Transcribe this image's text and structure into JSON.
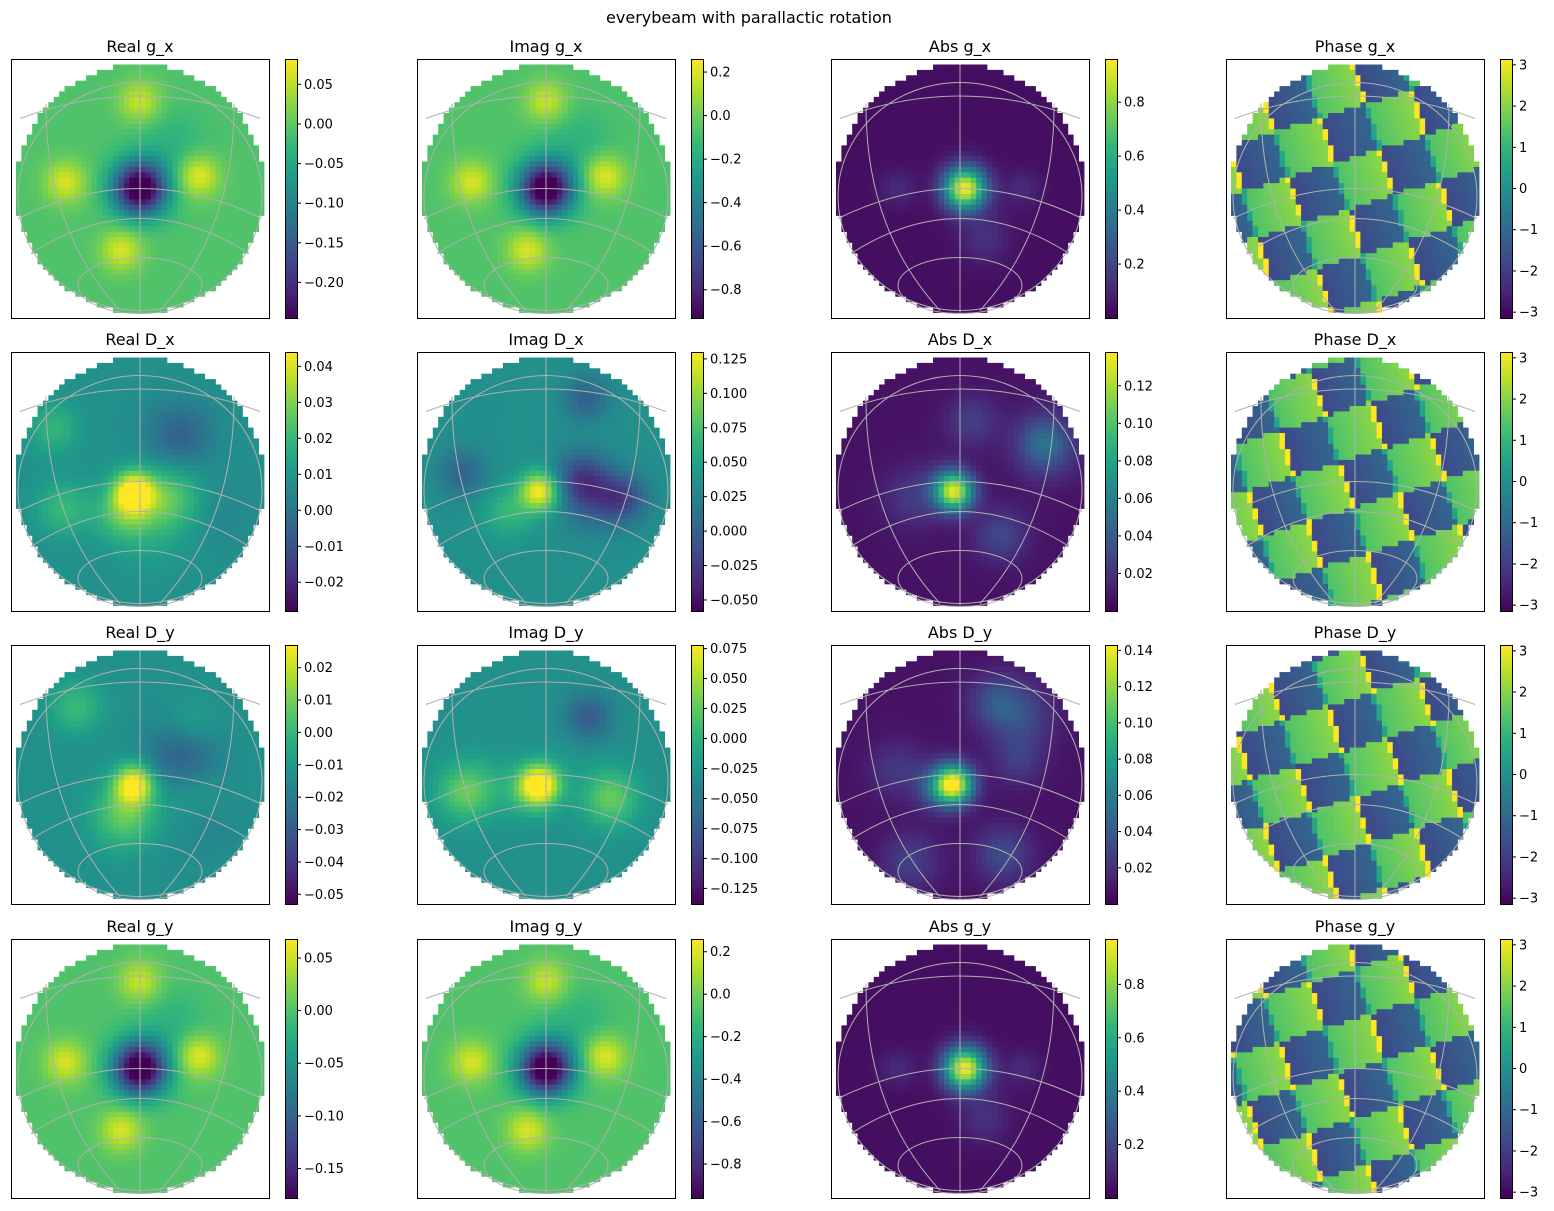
{
  "figure": {
    "title": "everybeam with parallactic rotation",
    "colormap": "viridis",
    "grid_color": "#b0b0b0",
    "background": "#ffffff"
  },
  "chart_data": [
    {
      "type": "heatmap",
      "title": "Real g_x",
      "map": "real_main",
      "range": [
        -0.245,
        0.082
      ],
      "colorbar_ticks": [
        0.05,
        0.0,
        -0.05,
        -0.1,
        -0.15,
        -0.2
      ],
      "colorbar_labels": [
        "0.05",
        "0.00",
        "−0.05",
        "−0.10",
        "−0.15",
        "−0.20"
      ]
    },
    {
      "type": "heatmap",
      "title": "Imag g_x",
      "map": "imag_main",
      "range": [
        -0.93,
        0.26
      ],
      "colorbar_ticks": [
        0.2,
        0.0,
        -0.2,
        -0.4,
        -0.6,
        -0.8
      ],
      "colorbar_labels": [
        "0.2",
        "0.0",
        "−0.2",
        "−0.4",
        "−0.6",
        "−0.8"
      ]
    },
    {
      "type": "heatmap",
      "title": "Abs g_x",
      "map": "abs_main",
      "range": [
        0.0,
        0.96
      ],
      "colorbar_ticks": [
        0.8,
        0.6,
        0.4,
        0.2
      ],
      "colorbar_labels": [
        "0.8",
        "0.6",
        "0.4",
        "0.2"
      ]
    },
    {
      "type": "heatmap",
      "title": "Phase g_x",
      "map": "phase",
      "seed": 1,
      "range": [
        -3.14159,
        3.14159
      ],
      "colorbar_ticks": [
        3,
        2,
        1,
        0,
        -1,
        -2,
        -3
      ],
      "colorbar_labels": [
        "3",
        "2",
        "1",
        "0",
        "−1",
        "−2",
        "−3"
      ]
    },
    {
      "type": "heatmap",
      "title": "Real D_x",
      "map": "real_d",
      "seed": 2,
      "range": [
        -0.028,
        0.044
      ],
      "colorbar_ticks": [
        0.04,
        0.03,
        0.02,
        0.01,
        0.0,
        -0.01,
        -0.02
      ],
      "colorbar_labels": [
        "0.04",
        "0.03",
        "0.02",
        "0.01",
        "0.00",
        "−0.01",
        "−0.02"
      ]
    },
    {
      "type": "heatmap",
      "title": "Imag D_x",
      "map": "imag_d",
      "seed": 3,
      "range": [
        -0.058,
        0.13
      ],
      "colorbar_ticks": [
        0.125,
        0.1,
        0.075,
        0.05,
        0.025,
        0.0,
        -0.025,
        -0.05
      ],
      "colorbar_labels": [
        "0.125",
        "0.100",
        "0.075",
        "0.050",
        "0.025",
        "0.000",
        "−0.025",
        "−0.050"
      ]
    },
    {
      "type": "heatmap",
      "title": "Abs D_x",
      "map": "abs_d",
      "seed": 4,
      "range": [
        0.0,
        0.138
      ],
      "colorbar_ticks": [
        0.12,
        0.1,
        0.08,
        0.06,
        0.04,
        0.02
      ],
      "colorbar_labels": [
        "0.12",
        "0.10",
        "0.08",
        "0.06",
        "0.04",
        "0.02"
      ]
    },
    {
      "type": "heatmap",
      "title": "Phase D_x",
      "map": "phase",
      "seed": 5,
      "range": [
        -3.14159,
        3.14159
      ],
      "colorbar_ticks": [
        3,
        2,
        1,
        0,
        -1,
        -2,
        -3
      ],
      "colorbar_labels": [
        "3",
        "2",
        "1",
        "0",
        "−1",
        "−2",
        "−3"
      ]
    },
    {
      "type": "heatmap",
      "title": "Real D_y",
      "map": "real_d",
      "seed": 6,
      "range": [
        -0.053,
        0.027
      ],
      "colorbar_ticks": [
        0.02,
        0.01,
        0.0,
        -0.01,
        -0.02,
        -0.03,
        -0.04,
        -0.05
      ],
      "colorbar_labels": [
        "0.02",
        "0.01",
        "0.00",
        "−0.01",
        "−0.02",
        "−0.03",
        "−0.04",
        "−0.05"
      ]
    },
    {
      "type": "heatmap",
      "title": "Imag D_y",
      "map": "imag_d",
      "seed": 7,
      "range": [
        -0.138,
        0.078
      ],
      "colorbar_ticks": [
        0.075,
        0.05,
        0.025,
        0.0,
        -0.025,
        -0.05,
        -0.075,
        -0.1,
        -0.125
      ],
      "colorbar_labels": [
        "0.075",
        "0.050",
        "0.025",
        "0.000",
        "−0.025",
        "−0.050",
        "−0.075",
        "−0.100",
        "−0.125"
      ]
    },
    {
      "type": "heatmap",
      "title": "Abs D_y",
      "map": "abs_d",
      "seed": 8,
      "range": [
        0.0,
        0.143
      ],
      "colorbar_ticks": [
        0.14,
        0.12,
        0.1,
        0.08,
        0.06,
        0.04,
        0.02
      ],
      "colorbar_labels": [
        "0.14",
        "0.12",
        "0.10",
        "0.08",
        "0.06",
        "0.04",
        "0.02"
      ]
    },
    {
      "type": "heatmap",
      "title": "Phase D_y",
      "map": "phase",
      "seed": 9,
      "range": [
        -3.14159,
        3.14159
      ],
      "colorbar_ticks": [
        3,
        2,
        1,
        0,
        -1,
        -2,
        -3
      ],
      "colorbar_labels": [
        "3",
        "2",
        "1",
        "0",
        "−1",
        "−2",
        "−3"
      ]
    },
    {
      "type": "heatmap",
      "title": "Real g_y",
      "map": "real_main",
      "range": [
        -0.178,
        0.068
      ],
      "colorbar_ticks": [
        0.05,
        0.0,
        -0.05,
        -0.1,
        -0.15
      ],
      "colorbar_labels": [
        "0.05",
        "0.00",
        "−0.05",
        "−0.10",
        "−0.15"
      ]
    },
    {
      "type": "heatmap",
      "title": "Imag g_y",
      "map": "imag_main",
      "range": [
        -0.96,
        0.26
      ],
      "colorbar_ticks": [
        0.2,
        0.0,
        -0.2,
        -0.4,
        -0.6,
        -0.8
      ],
      "colorbar_labels": [
        "0.2",
        "0.0",
        "−0.2",
        "−0.4",
        "−0.6",
        "−0.8"
      ]
    },
    {
      "type": "heatmap",
      "title": "Abs g_y",
      "map": "abs_main",
      "range": [
        0.0,
        0.97
      ],
      "colorbar_ticks": [
        0.8,
        0.6,
        0.4,
        0.2
      ],
      "colorbar_labels": [
        "0.8",
        "0.6",
        "0.4",
        "0.2"
      ]
    },
    {
      "type": "heatmap",
      "title": "Phase g_y",
      "map": "phase",
      "seed": 10,
      "range": [
        -3.14159,
        3.14159
      ],
      "colorbar_ticks": [
        3,
        2,
        1,
        0,
        -1,
        -2,
        -3
      ],
      "colorbar_labels": [
        "3",
        "2",
        "1",
        "0",
        "−1",
        "−2",
        "−3"
      ]
    }
  ]
}
